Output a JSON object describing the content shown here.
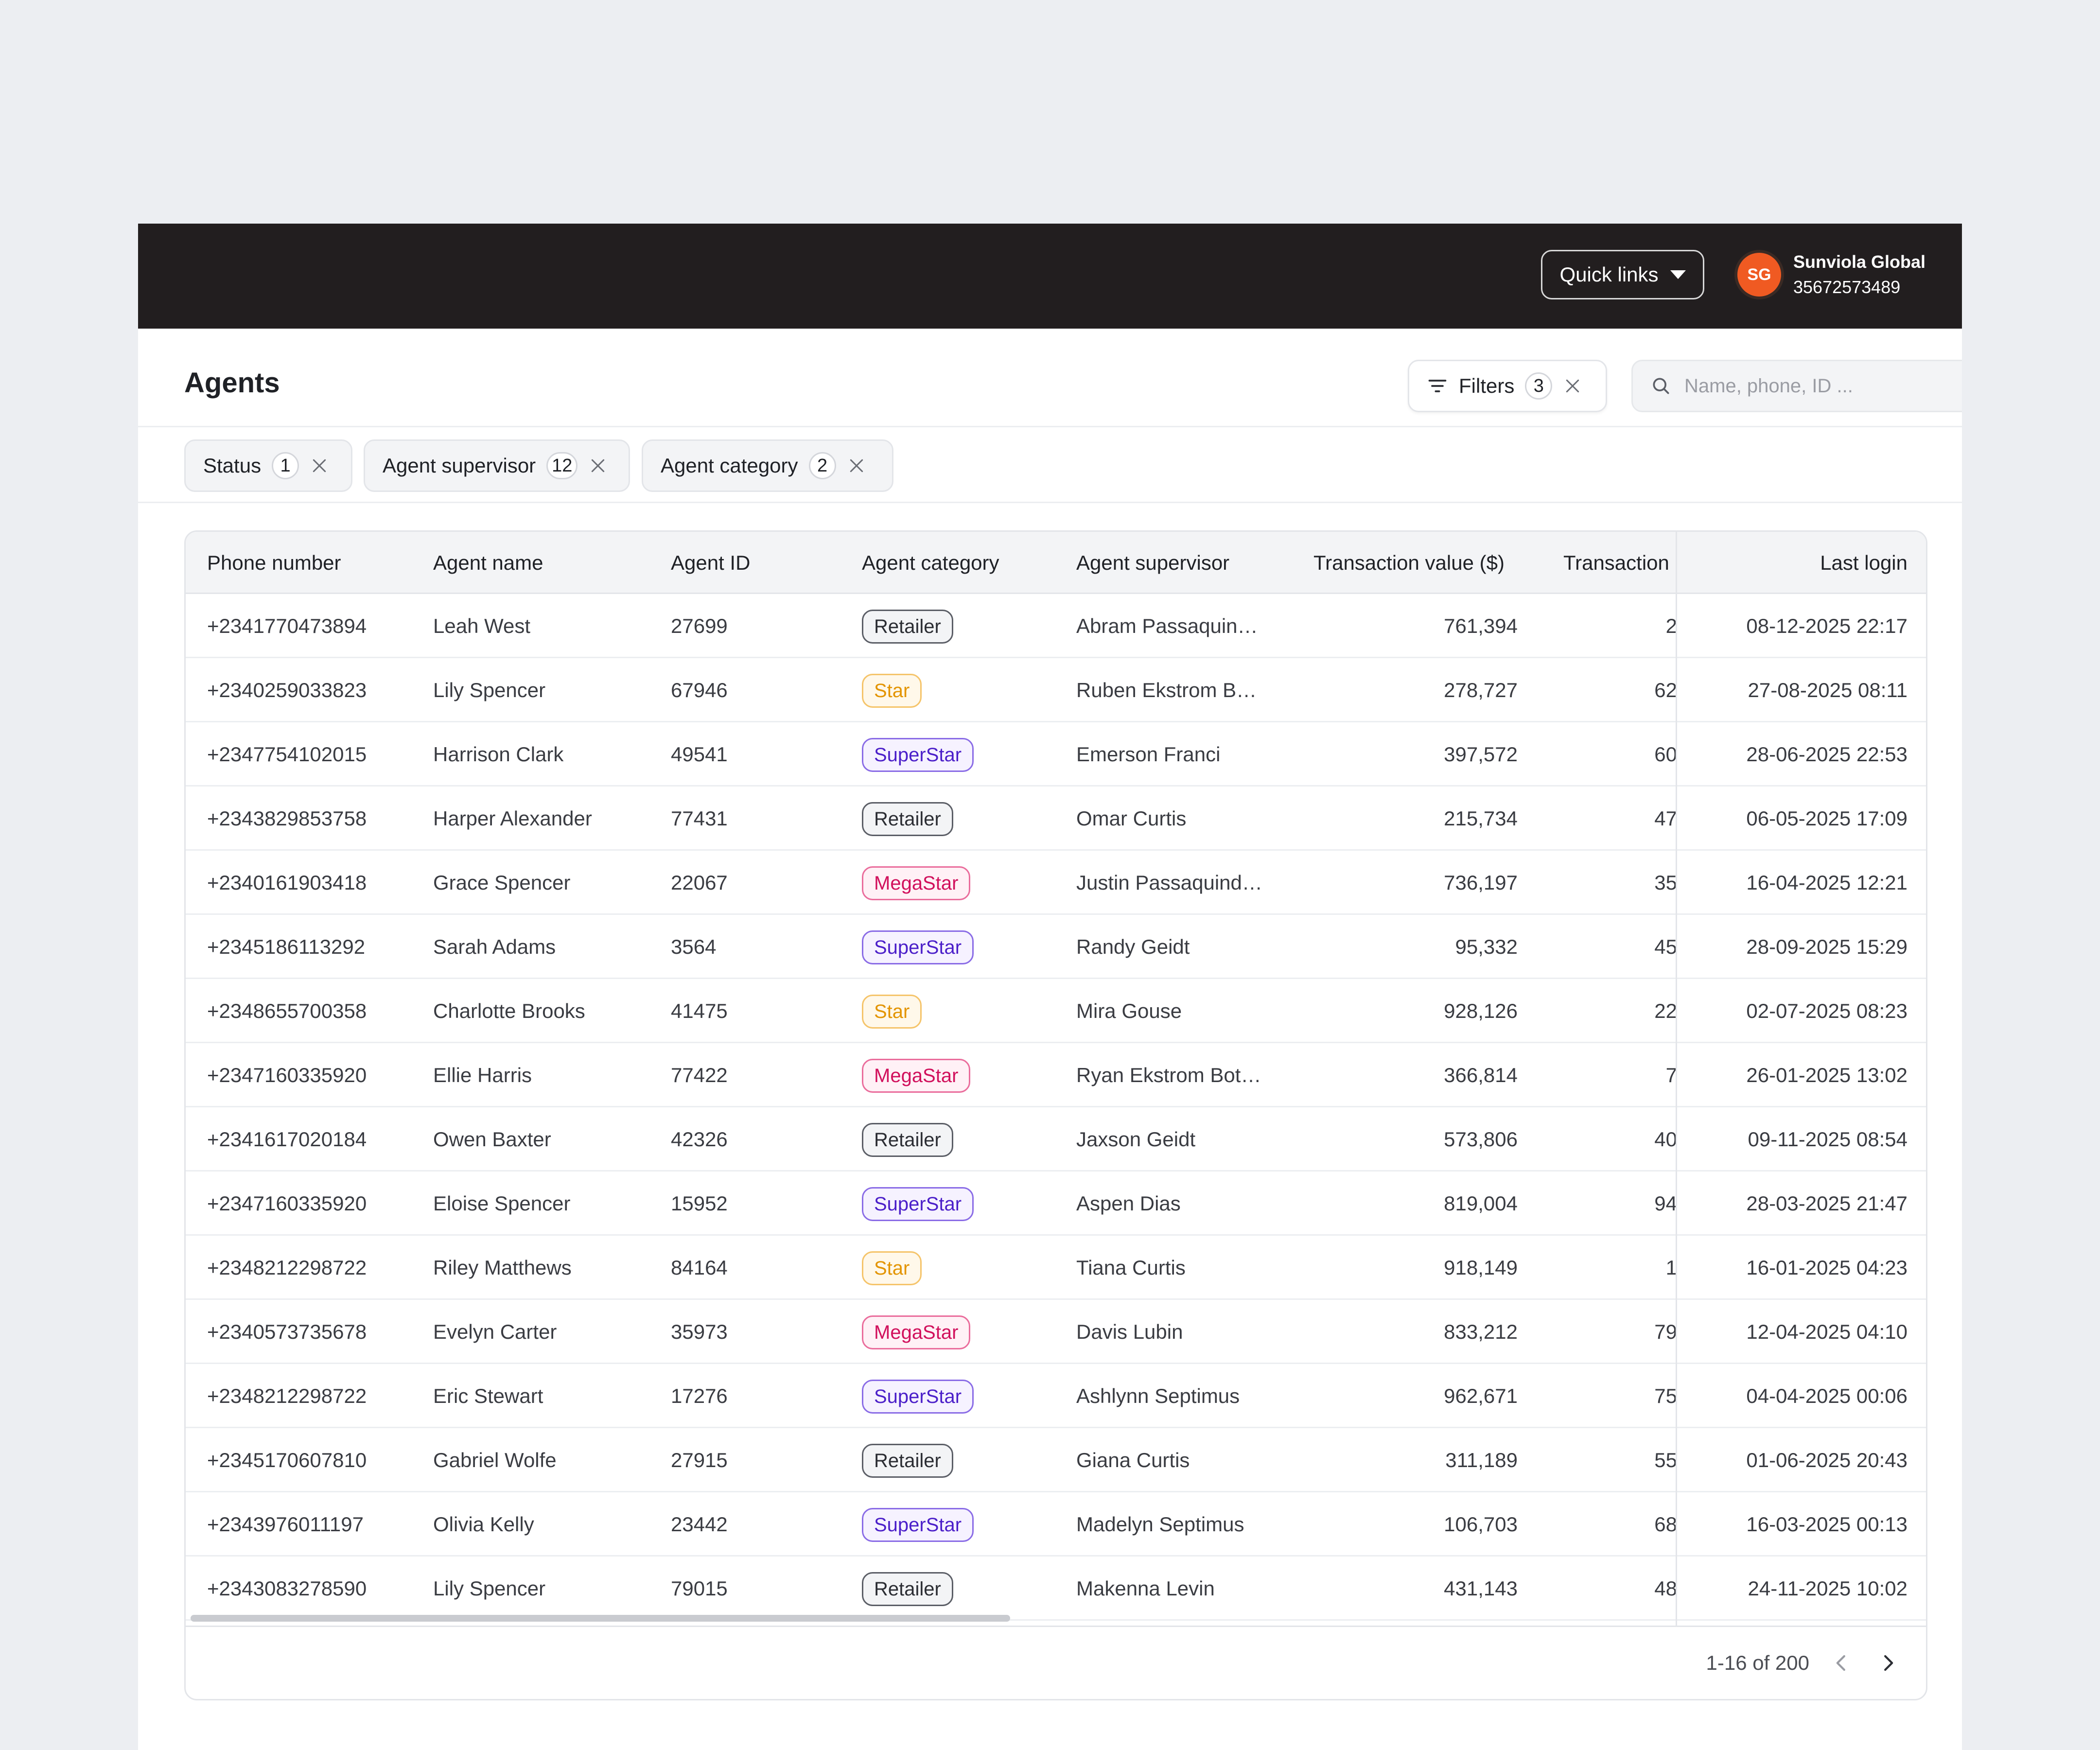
{
  "topbar": {
    "quick_links_label": "Quick links",
    "avatar_initials": "SG",
    "org_name": "Sunviola Global",
    "org_phone": "35672573489",
    "avatar_color": "#f05a22"
  },
  "page": {
    "title": "Agents",
    "filters_label": "Filters",
    "filters_count": "3",
    "search_placeholder": "Name, phone, ID ..."
  },
  "chips": [
    {
      "label": "Status",
      "count": "1"
    },
    {
      "label": "Agent supervisor",
      "count": "12"
    },
    {
      "label": "Agent category",
      "count": "2"
    }
  ],
  "table": {
    "columns": [
      "Phone number",
      "Agent name",
      "Agent ID",
      "Agent category",
      "Agent supervisor",
      "Transaction value ($)",
      "Transaction",
      "Last login"
    ],
    "rows": [
      {
        "phone": "+2341770473894",
        "name": "Leah West",
        "id": "27699",
        "category": "Retailer",
        "supervisor": "Abram Passaquind…",
        "value": "761,394",
        "tx": "2",
        "login": "08-12-2025 22:17"
      },
      {
        "phone": "+2340259033823",
        "name": "Lily Spencer",
        "id": "67946",
        "category": "Star",
        "supervisor": "Ruben Ekstrom Bo…",
        "value": "278,727",
        "tx": "62",
        "login": "27-08-2025 08:11"
      },
      {
        "phone": "+2347754102015",
        "name": "Harrison Clark",
        "id": "49541",
        "category": "SuperStar",
        "supervisor": "Emerson Franci",
        "value": "397,572",
        "tx": "60",
        "login": "28-06-2025 22:53"
      },
      {
        "phone": "+2343829853758",
        "name": "Harper Alexander",
        "id": "77431",
        "category": "Retailer",
        "supervisor": "Omar Curtis",
        "value": "215,734",
        "tx": "47",
        "login": "06-05-2025 17:09"
      },
      {
        "phone": "+2340161903418",
        "name": "Grace Spencer",
        "id": "22067",
        "category": "MegaStar",
        "supervisor": "Justin Passaquindi…",
        "value": "736,197",
        "tx": "35",
        "login": "16-04-2025 12:21"
      },
      {
        "phone": "+2345186113292",
        "name": "Sarah Adams",
        "id": "3564",
        "category": "SuperStar",
        "supervisor": "Randy Geidt",
        "value": "95,332",
        "tx": "45",
        "login": "28-09-2025 15:29"
      },
      {
        "phone": "+2348655700358",
        "name": "Charlotte Brooks",
        "id": "41475",
        "category": "Star",
        "supervisor": "Mira Gouse",
        "value": "928,126",
        "tx": "22",
        "login": "02-07-2025 08:23"
      },
      {
        "phone": "+2347160335920",
        "name": "Ellie Harris",
        "id": "77422",
        "category": "MegaStar",
        "supervisor": "Ryan Ekstrom Bot…",
        "value": "366,814",
        "tx": "7",
        "login": "26-01-2025 13:02"
      },
      {
        "phone": "+2341617020184",
        "name": "Owen Baxter",
        "id": "42326",
        "category": "Retailer",
        "supervisor": "Jaxson Geidt",
        "value": "573,806",
        "tx": "40",
        "login": "09-11-2025 08:54"
      },
      {
        "phone": "+2347160335920",
        "name": "Eloise Spencer",
        "id": "15952",
        "category": "SuperStar",
        "supervisor": "Aspen Dias",
        "value": "819,004",
        "tx": "94",
        "login": "28-03-2025 21:47"
      },
      {
        "phone": "+2348212298722",
        "name": "Riley Matthews",
        "id": "84164",
        "category": "Star",
        "supervisor": "Tiana Curtis",
        "value": "918,149",
        "tx": "1",
        "login": "16-01-2025 04:23"
      },
      {
        "phone": "+2340573735678",
        "name": "Evelyn Carter",
        "id": "35973",
        "category": "MegaStar",
        "supervisor": "Davis Lubin",
        "value": "833,212",
        "tx": "79",
        "login": "12-04-2025 04:10"
      },
      {
        "phone": "+2348212298722",
        "name": "Eric Stewart",
        "id": "17276",
        "category": "SuperStar",
        "supervisor": "Ashlynn Septimus",
        "value": "962,671",
        "tx": "75",
        "login": "04-04-2025 00:06"
      },
      {
        "phone": "+2345170607810",
        "name": "Gabriel Wolfe",
        "id": "27915",
        "category": "Retailer",
        "supervisor": "Giana Curtis",
        "value": "311,189",
        "tx": "55",
        "login": "01-06-2025 20:43"
      },
      {
        "phone": "+2343976011197",
        "name": "Olivia Kelly",
        "id": "23442",
        "category": "SuperStar",
        "supervisor": "Madelyn Septimus",
        "value": "106,703",
        "tx": "68",
        "login": "16-03-2025 00:13"
      },
      {
        "phone": "+2343083278590",
        "name": "Lily Spencer",
        "id": "79015",
        "category": "Retailer",
        "supervisor": "Makenna Levin",
        "value": "431,143",
        "tx": "48",
        "login": "24-11-2025 10:02"
      }
    ]
  },
  "category_colors": {
    "Retailer": {
      "text": "#2b2d33",
      "border": "#5b5e66",
      "bg": "#f3f4f6"
    },
    "Star": {
      "text": "#e39400",
      "border": "#f5c46a",
      "bg": "#fff8ea"
    },
    "SuperStar": {
      "text": "#4b1fc9",
      "border": "#8a6ce6",
      "bg": "#f6f2ff"
    },
    "MegaStar": {
      "text": "#d1105c",
      "border": "#ea6d9c",
      "bg": "#fff1f6"
    }
  },
  "pagination": {
    "range_label": "1-16 of 200"
  }
}
